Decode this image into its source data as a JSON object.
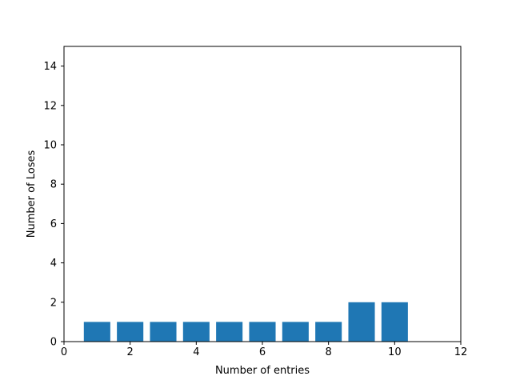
{
  "chart_data": {
    "type": "bar",
    "x": [
      1,
      2,
      3,
      4,
      5,
      6,
      7,
      8,
      9,
      10
    ],
    "values": [
      1,
      1,
      1,
      1,
      1,
      1,
      1,
      1,
      2,
      2
    ],
    "xlabel": "Number of entries",
    "ylabel": "Number of Loses",
    "xlim": [
      0,
      12
    ],
    "ylim": [
      0,
      15
    ],
    "xticks": [
      0,
      2,
      4,
      6,
      8,
      10,
      12
    ],
    "yticks": [
      0,
      2,
      4,
      6,
      8,
      10,
      12,
      14
    ],
    "bar_width": 0.8,
    "bar_color": "#1f77b4",
    "grid": false,
    "legend": "none"
  }
}
